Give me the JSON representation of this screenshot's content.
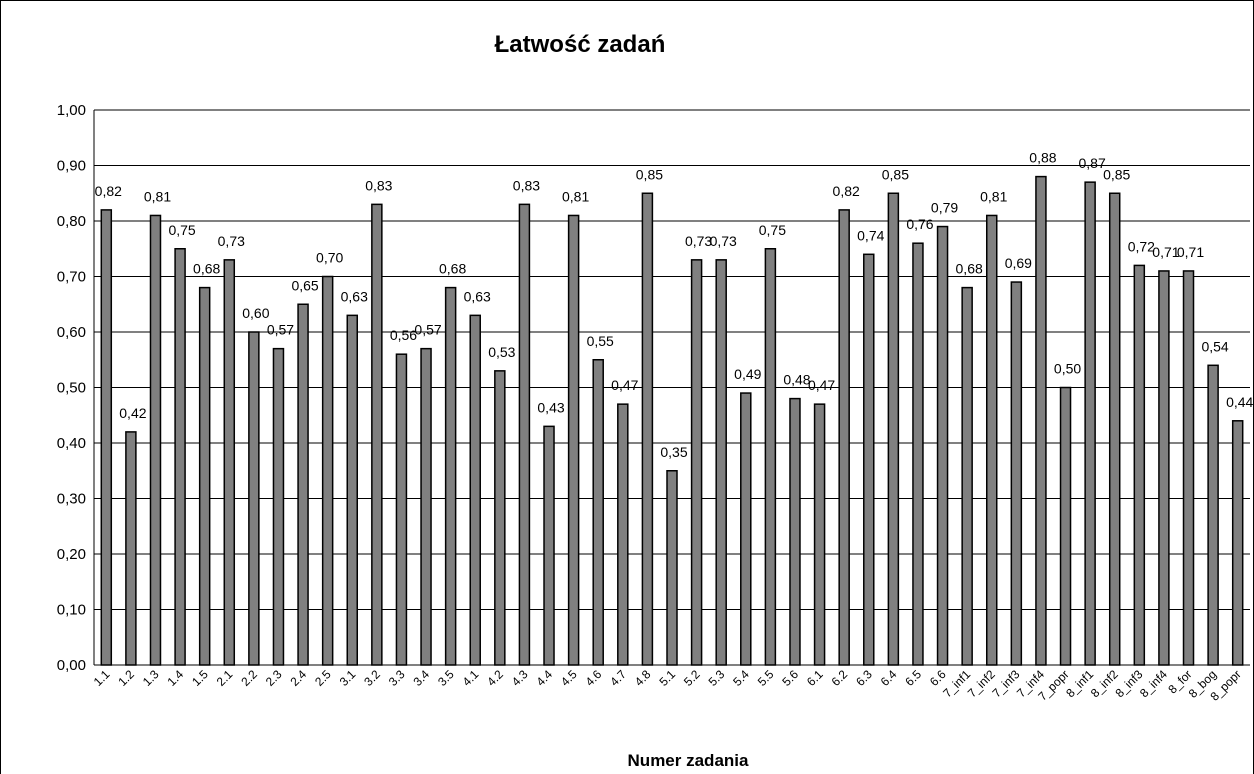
{
  "chart_data": {
    "type": "bar",
    "title": "Łatwość zadań",
    "x_label": "Numer zadania",
    "categories": [
      "1.1",
      "1.2",
      "1.3",
      "1.4",
      "1.5",
      "2.1",
      "2.2",
      "2.3",
      "2.4",
      "2.5",
      "3.1",
      "3.2",
      "3.3",
      "3.4",
      "3.5",
      "4.1",
      "4.2",
      "4.3",
      "4.4",
      "4.5",
      "4.6",
      "4.7",
      "4.8",
      "5.1",
      "5.2",
      "5.3",
      "5.4",
      "5.5",
      "5.6",
      "6.1",
      "6.2",
      "6.3",
      "6.4",
      "6.5",
      "6.6",
      "7_inf1",
      "7_inf2",
      "7_inf3",
      "7_inf4",
      "7_popr",
      "8_inf1",
      "8_inf2",
      "8_inf3",
      "8_inf4",
      "8_for",
      "8_bog",
      "8_popr"
    ],
    "values": [
      0.82,
      0.42,
      0.81,
      0.75,
      0.68,
      0.73,
      0.6,
      0.57,
      0.65,
      0.7,
      0.63,
      0.83,
      0.56,
      0.57,
      0.68,
      0.63,
      0.53,
      0.83,
      0.43,
      0.81,
      0.55,
      0.47,
      0.85,
      0.35,
      0.73,
      0.73,
      0.49,
      0.75,
      0.48,
      0.47,
      0.82,
      0.74,
      0.85,
      0.76,
      0.79,
      0.68,
      0.81,
      0.69,
      0.88,
      0.5,
      0.87,
      0.85,
      0.72,
      0.71,
      0.71,
      0.54,
      0.44
    ],
    "value_labels": [
      "0,82",
      "0,42",
      "0,81",
      "0,75",
      "0,68",
      "0,73",
      "0,60",
      "0,57",
      "0,65",
      "0,70",
      "0,63",
      "0,83",
      "0,56",
      "0,57",
      "0,68",
      "0,63",
      "0,53",
      "0,83",
      "0,43",
      "0,81",
      "0,55",
      "0,47",
      "0,85",
      "0,35",
      "0,73",
      "0,73",
      "0,49",
      "0,75",
      "0,48",
      "0,47",
      "0,82",
      "0,74",
      "0,85",
      "0,76",
      "0,79",
      "0,68",
      "0,81",
      "0,69",
      "0,88",
      "0,50",
      "0,87",
      "0,85",
      "0,72",
      "0,71",
      "0,71",
      "0,54",
      "0,44"
    ],
    "color": "#808080",
    "ylim": [
      0,
      1
    ],
    "yticks": [
      {
        "value": 0,
        "label": "0,00"
      },
      {
        "value": 0.1,
        "label": "0,10"
      },
      {
        "value": 0.2,
        "label": "0,20"
      },
      {
        "value": 0.3,
        "label": "0,30"
      },
      {
        "value": 0.4,
        "label": "0,40"
      },
      {
        "value": 0.5,
        "label": "0,50"
      },
      {
        "value": 0.6,
        "label": "0,60"
      },
      {
        "value": 0.7,
        "label": "0,70"
      },
      {
        "value": 0.8,
        "label": "0,80"
      },
      {
        "value": 0.9,
        "label": "0,90"
      },
      {
        "value": 1,
        "label": "1,00"
      }
    ],
    "grid": true
  }
}
